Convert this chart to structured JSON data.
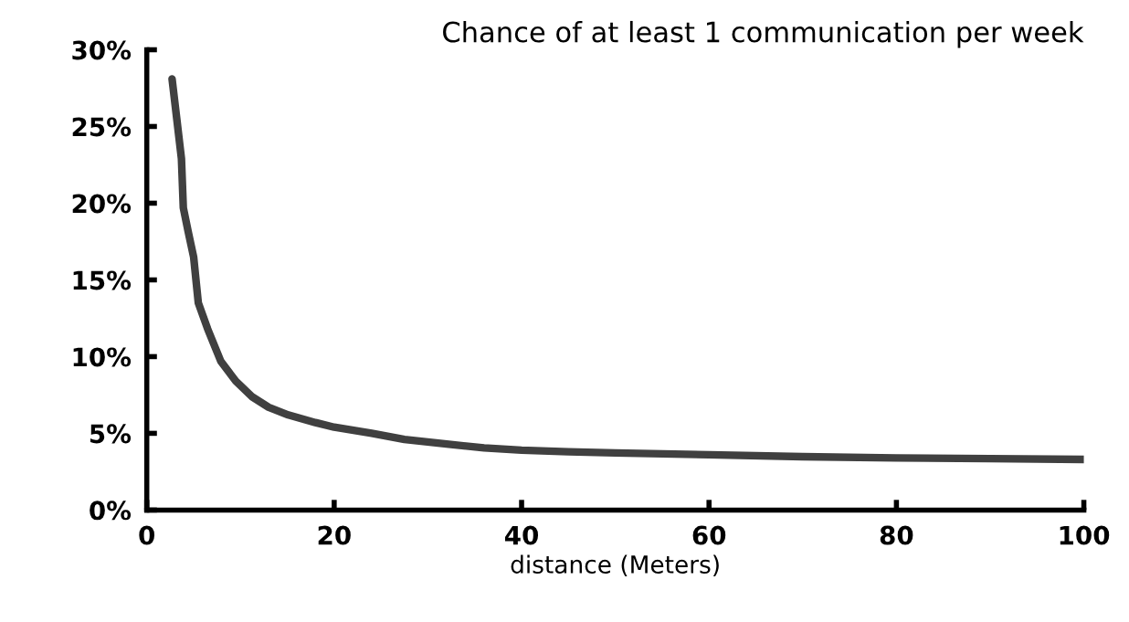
{
  "chart_data": {
    "type": "line",
    "title": "Chance of at least 1 communication per week",
    "xlabel": "distance (Meters)",
    "x": [
      2.7,
      3.2,
      3.7,
      3.9,
      4.4,
      5.0,
      5.5,
      6.5,
      7.9,
      9.5,
      11.2,
      13,
      15.1,
      18,
      20,
      24,
      27.5,
      32,
      36,
      40,
      45,
      50,
      60,
      70,
      80,
      90,
      100
    ],
    "series": [
      {
        "color": "#404040",
        "values": [
          28.1,
          25.5,
          22.9,
          19.7,
          18.2,
          16.5,
          13.5,
          11.8,
          9.7,
          8.4,
          7.4,
          6.7,
          6.2,
          5.7,
          5.4,
          5.0,
          4.6,
          4.3,
          4.05,
          3.9,
          3.8,
          3.72,
          3.6,
          3.48,
          3.4,
          3.35,
          3.3
        ]
      }
    ],
    "xlim": [
      0,
      100
    ],
    "ylim": [
      0,
      30
    ],
    "xticks": [
      0,
      20,
      40,
      60,
      80,
      100
    ],
    "yticks": [
      {
        "value": 0,
        "label": "0%"
      },
      {
        "value": 5,
        "label": "5%"
      },
      {
        "value": 10,
        "label": "10%"
      },
      {
        "value": 15,
        "label": "15%"
      },
      {
        "value": 20,
        "label": "20%"
      },
      {
        "value": 25,
        "label": "25%"
      },
      {
        "value": 30,
        "label": "30%"
      }
    ],
    "grid": false,
    "marker": "none",
    "line_style": "solid"
  }
}
